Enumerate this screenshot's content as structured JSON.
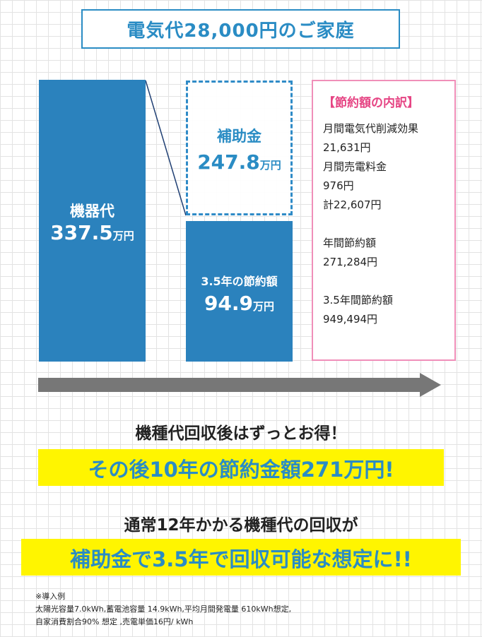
{
  "title": "電気代28,000円のご家庭",
  "chart": {
    "equipment": {
      "label": "機器代",
      "value": "337.5",
      "unit": "万円"
    },
    "subsidy": {
      "label": "補助金",
      "value": "247.8",
      "unit": "万円"
    },
    "savings": {
      "label": "3.5年の節約額",
      "value": "94.9",
      "unit": "万円"
    }
  },
  "breakdown": {
    "title": "【節約額の内訳】",
    "lines": [
      "月間電気代削減効果",
      "21,631円",
      "月間売電料金",
      "976円",
      "計22,607円",
      "",
      "年間節約額",
      "271,284円",
      "",
      "3.5年間節約額",
      "949,494円"
    ]
  },
  "headline1": "機種代回収後はずっとお得！",
  "highlight1": "その後10年の節約金額271万円!",
  "headline2": "通常12年かかる機種代の回収が",
  "highlight2": "補助金で3.5年で回収可能な想定に!!",
  "note": {
    "title": "※導入例",
    "line1": "太陽光容量7.0kWh,蓄電池容量 14.9kWh,平均月間発電量 610kWh想定,",
    "line2": "自家消費割合90% 想定 ,売電単価16円/ kWh"
  },
  "colors": {
    "bar_blue": "#2b82bd",
    "title_blue": "#2a8cc4",
    "pink_accent": "#e64584",
    "highlight_yellow": "#fff500",
    "arrow_gray": "#777777"
  }
}
